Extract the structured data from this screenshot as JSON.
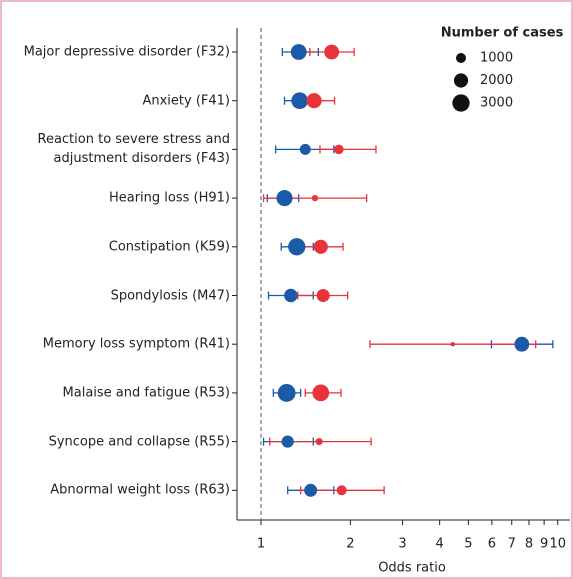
{
  "chart_data": {
    "type": "forest",
    "categories": [
      "Major depressive disorder (F32)",
      "Anxiety (F41)",
      "Reaction to severe stress and\nadjustment disorders (F43)",
      "Hearing loss (H91)",
      "Constipation (K59)",
      "Spondylosis (M47)",
      "Memory loss symptom (R41)",
      "Malaise and fatigue (R53)",
      "Syncope and collapse (R55)",
      "Abnormal weight loss (R63)"
    ],
    "series": [
      {
        "color": "#1a5aa6",
        "values": [
          1.34,
          1.35,
          1.41,
          1.2,
          1.32,
          1.26,
          7.57,
          1.22,
          1.23,
          1.47
        ],
        "lower": [
          1.18,
          1.2,
          1.12,
          1.05,
          1.17,
          1.06,
          5.98,
          1.1,
          1.02,
          1.23
        ],
        "upper": [
          1.56,
          1.52,
          1.76,
          1.34,
          1.5,
          1.5,
          9.63,
          1.36,
          1.5,
          1.76
        ],
        "cases": [
          2500,
          2800,
          1200,
          2600,
          3000,
          1800,
          2200,
          3200,
          1500,
          1700
        ]
      },
      {
        "color": "#e8323c",
        "values": [
          1.73,
          1.51,
          1.83,
          1.52,
          1.59,
          1.62,
          4.43,
          1.59,
          1.57,
          1.87
        ],
        "lower": [
          1.46,
          1.33,
          1.58,
          1.02,
          1.38,
          1.33,
          2.33,
          1.41,
          1.07,
          1.36
        ],
        "upper": [
          2.06,
          1.77,
          2.44,
          2.27,
          1.89,
          1.96,
          8.43,
          1.86,
          2.35,
          2.6
        ],
        "cases": [
          2200,
          2300,
          900,
          400,
          2000,
          1700,
          200,
          2800,
          500,
          1000
        ]
      }
    ],
    "xlabel": "Odds ratio",
    "xlim": [
      0.83,
      11
    ],
    "xticks": [
      1,
      2,
      3,
      4,
      5,
      6,
      7,
      8,
      9,
      10
    ],
    "log_x": true,
    "reference_line": 1,
    "size_legend": {
      "title": "Number of cases",
      "values": [
        1000,
        2000,
        3000
      ],
      "position": "upper right"
    }
  }
}
